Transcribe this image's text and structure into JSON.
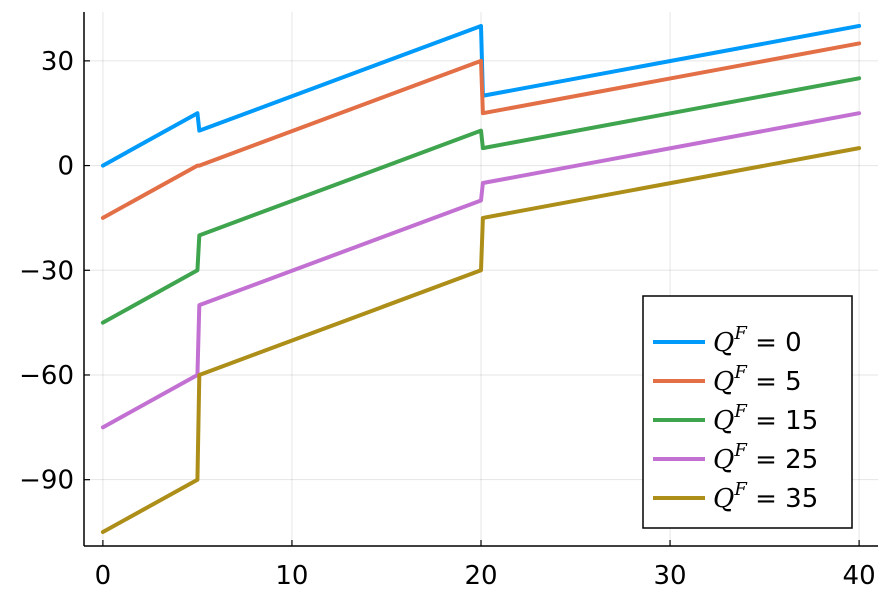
{
  "chart_data": {
    "type": "line",
    "xlim": [
      -1,
      41
    ],
    "ylim": [
      -109,
      44
    ],
    "x_ticks": [
      0,
      10,
      20,
      30,
      40
    ],
    "y_ticks": [
      30,
      0,
      -30,
      -60,
      -90
    ],
    "x_tick_labels": [
      "0",
      "10",
      "20",
      "30",
      "40"
    ],
    "y_tick_labels": [
      "30",
      "0",
      "−30",
      "−60",
      "−90"
    ],
    "grid": true,
    "legend_position": "bottom-right",
    "legend_prefix": "Q^F =",
    "series": [
      {
        "name": "Q^F = 0",
        "label_value": "0",
        "color": "#009AFA",
        "x": [
          0,
          5,
          5.1,
          20,
          20.1,
          40
        ],
        "y": [
          0,
          15,
          10,
          40,
          20,
          40
        ]
      },
      {
        "name": "Q^F = 5",
        "label_value": "5",
        "color": "#E36F47",
        "x": [
          0,
          5,
          5.1,
          20,
          20.1,
          40
        ],
        "y": [
          -15,
          0,
          0,
          30,
          15,
          35
        ]
      },
      {
        "name": "Q^F = 15",
        "label_value": "15",
        "color": "#3EA44E",
        "x": [
          0,
          5,
          5.1,
          20,
          20.1,
          40
        ],
        "y": [
          -45,
          -30,
          -20,
          10,
          5,
          25
        ]
      },
      {
        "name": "Q^F = 25",
        "label_value": "25",
        "color": "#C271D2",
        "x": [
          0,
          5,
          5.1,
          20,
          20.1,
          40
        ],
        "y": [
          -75,
          -60,
          -40,
          -10,
          -5,
          15
        ]
      },
      {
        "name": "Q^F = 35",
        "label_value": "35",
        "color": "#AC8E18",
        "x": [
          0,
          5,
          5.1,
          20,
          20.1,
          40
        ],
        "y": [
          -105,
          -90,
          -60,
          -30,
          -15,
          5
        ]
      }
    ]
  }
}
